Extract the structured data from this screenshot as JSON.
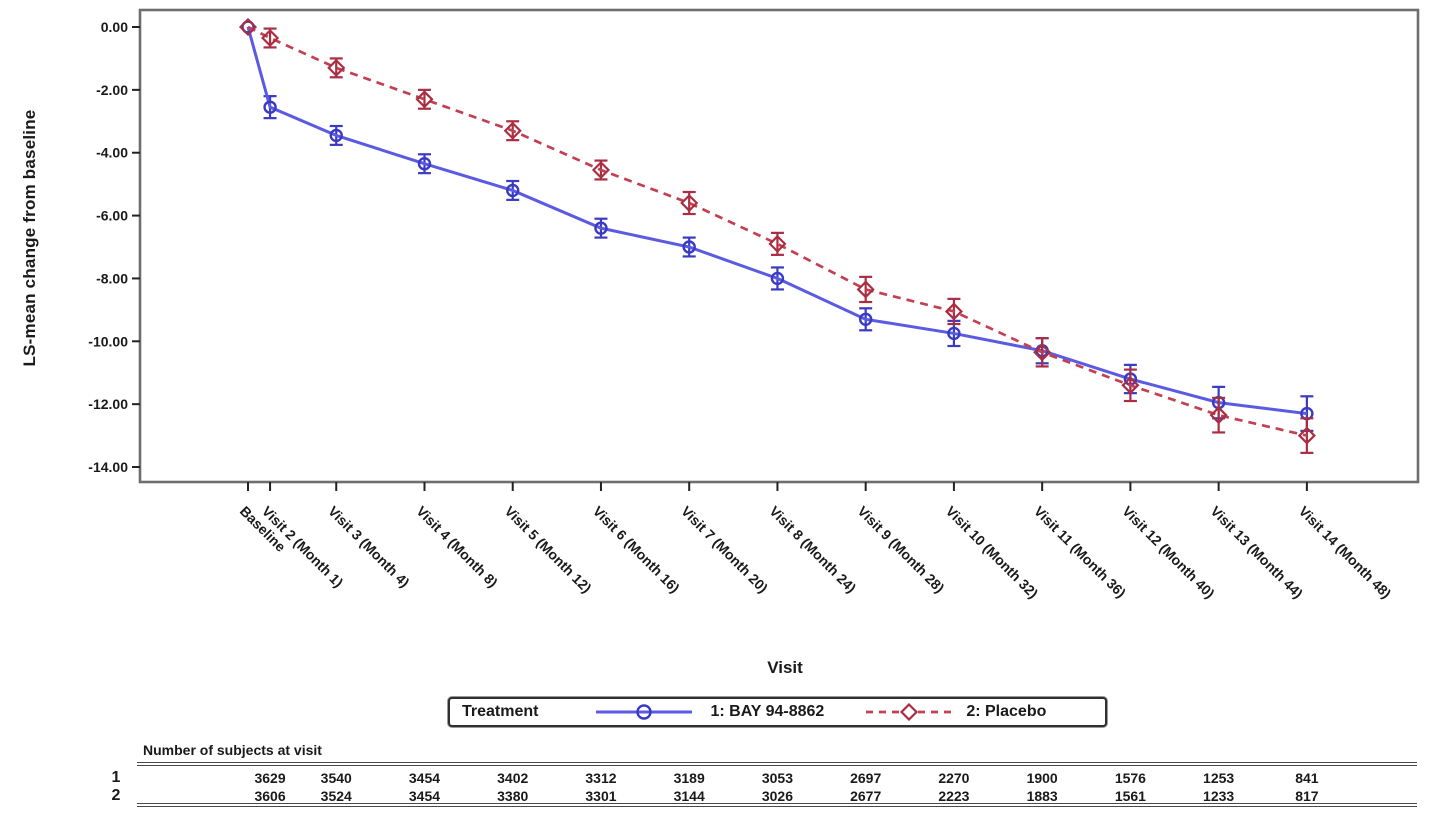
{
  "chart": {
    "y_axis": {
      "title": "LS-mean change from baseline",
      "tick_labels": [
        "0.00",
        "-2.00",
        "-4.00",
        "-6.00",
        "-8.00",
        "-10.00",
        "-12.00",
        "-14.00"
      ]
    },
    "x_axis": {
      "title": "Visit"
    },
    "legend": {
      "title": "Treatment",
      "series": [
        {
          "label": "1: BAY 94-8862"
        },
        {
          "label": "2: Placebo"
        }
      ]
    }
  },
  "chart_data": {
    "type": "line",
    "title": "",
    "xlabel": "Visit",
    "ylabel": "LS-mean change from baseline",
    "ylim": [
      -14,
      0
    ],
    "grid": false,
    "legend_position": "bottom",
    "y_tick_values": [
      0,
      -2,
      -4,
      -6,
      -8,
      -10,
      -12,
      -14
    ],
    "categories": [
      "Baseline",
      "Visit 2 (Month 1)",
      "Visit 3 (Month 4)",
      "Visit 4 (Month 8)",
      "Visit 5 (Month 12)",
      "Visit 6 (Month 16)",
      "Visit 7 (Month 20)",
      "Visit 8 (Month 24)",
      "Visit 9 (Month 28)",
      "Visit 10 (Month 32)",
      "Visit 11 (Month 36)",
      "Visit 12 (Month 40)",
      "Visit 13 (Month 44)",
      "Visit 14 (Month 48)"
    ],
    "x_months": [
      0,
      1,
      4,
      8,
      12,
      16,
      20,
      24,
      28,
      32,
      36,
      40,
      44,
      48
    ],
    "series": [
      {
        "name": "1: BAY 94-8862",
        "line_style": "solid",
        "marker": "circle",
        "color": "#5a5ae2",
        "marker_color": "#3a3ac2",
        "values": [
          0.0,
          -2.55,
          -3.45,
          -4.35,
          -5.2,
          -6.4,
          -7.0,
          -8.0,
          -9.3,
          -9.75,
          -10.3,
          -11.2,
          -11.95,
          -12.3
        ],
        "stderr": [
          0,
          0.35,
          0.3,
          0.3,
          0.3,
          0.3,
          0.3,
          0.35,
          0.35,
          0.4,
          0.4,
          0.45,
          0.5,
          0.55
        ]
      },
      {
        "name": "2: Placebo",
        "line_style": "dashed",
        "marker": "diamond",
        "color": "#c24052",
        "marker_color": "#aa2e42",
        "values": [
          0.0,
          -0.35,
          -1.3,
          -2.3,
          -3.3,
          -4.55,
          -5.6,
          -6.9,
          -8.35,
          -9.05,
          -10.35,
          -11.4,
          -12.35,
          -13.0
        ],
        "stderr": [
          0,
          0.3,
          0.3,
          0.3,
          0.3,
          0.3,
          0.35,
          0.35,
          0.4,
          0.4,
          0.45,
          0.5,
          0.55,
          0.55
        ]
      }
    ]
  },
  "subject_table": {
    "title": "Number of subjects at visit",
    "rows": [
      {
        "label": "1",
        "values": [
          3629,
          3540,
          3454,
          3402,
          3312,
          3189,
          3053,
          2697,
          2270,
          1900,
          1576,
          1253,
          841
        ]
      },
      {
        "label": "2",
        "values": [
          3606,
          3524,
          3454,
          3380,
          3301,
          3144,
          3026,
          2677,
          2223,
          1883,
          1561,
          1233,
          817
        ]
      }
    ]
  }
}
